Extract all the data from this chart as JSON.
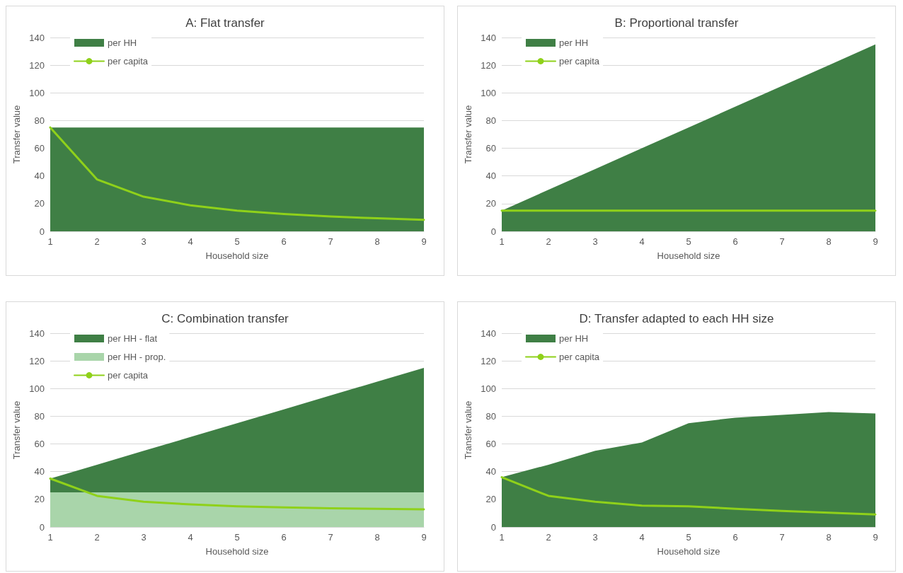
{
  "chart_data": [
    {
      "type": "area",
      "title": "A: Flat transfer",
      "xlabel": "Household size",
      "ylabel": "Transfer value",
      "categories": [
        "1",
        "2",
        "3",
        "4",
        "5",
        "6",
        "7",
        "8",
        "9"
      ],
      "series": [
        {
          "name": "per HH",
          "color": "#3f7f45",
          "values": [
            75,
            75,
            75,
            75,
            75,
            75,
            75,
            75,
            75
          ]
        },
        {
          "name": "per capita",
          "type": "line",
          "color": "#8fd11a",
          "values": [
            75,
            37.5,
            25,
            18.8,
            15,
            12.5,
            10.7,
            9.4,
            8.3
          ]
        }
      ],
      "ylim": [
        0,
        140
      ],
      "yticks": [
        0,
        20,
        40,
        60,
        80,
        100,
        120,
        140
      ],
      "grid": "y",
      "legend": "top left",
      "marker": "none"
    },
    {
      "type": "area",
      "title": "B: Proportional transfer",
      "xlabel": "Household size",
      "ylabel": "Transfer value",
      "categories": [
        "1",
        "2",
        "3",
        "4",
        "5",
        "6",
        "7",
        "8",
        "9"
      ],
      "series": [
        {
          "name": "per HH",
          "color": "#3f7f45",
          "values": [
            15,
            30,
            45,
            60,
            75,
            90,
            105,
            120,
            135
          ]
        },
        {
          "name": "per capita",
          "type": "line",
          "color": "#8fd11a",
          "values": [
            15,
            15,
            15,
            15,
            15,
            15,
            15,
            15,
            15
          ]
        }
      ],
      "ylim": [
        0,
        140
      ],
      "yticks": [
        0,
        20,
        40,
        60,
        80,
        100,
        120,
        140
      ],
      "grid": "y",
      "legend": "top left",
      "marker": "none"
    },
    {
      "type": "area",
      "title": "C: Combination transfer",
      "xlabel": "Household size",
      "ylabel": "Transfer value",
      "categories": [
        "1",
        "2",
        "3",
        "4",
        "5",
        "6",
        "7",
        "8",
        "9"
      ],
      "stacked": true,
      "series": [
        {
          "name": "per HH - prop.",
          "color": "#a9d5aa",
          "values": [
            25,
            25,
            25,
            25,
            25,
            25,
            25,
            25,
            25
          ]
        },
        {
          "name": "per HH - flat",
          "color": "#3f7f45",
          "values": [
            10,
            20,
            30,
            40,
            50,
            60,
            70,
            80,
            90
          ]
        },
        {
          "name": "per capita",
          "type": "line",
          "color": "#8fd11a",
          "values": [
            35,
            22.5,
            18.3,
            16.3,
            15,
            14.2,
            13.6,
            13.1,
            12.8
          ]
        }
      ],
      "ylim": [
        0,
        140
      ],
      "yticks": [
        0,
        20,
        40,
        60,
        80,
        100,
        120,
        140
      ],
      "grid": "y",
      "legend": "top left",
      "marker": "none"
    },
    {
      "type": "area",
      "title": "D: Transfer adapted to each HH size",
      "xlabel": "Household size",
      "ylabel": "Transfer value",
      "categories": [
        "1",
        "2",
        "3",
        "4",
        "5",
        "6",
        "7",
        "8",
        "9"
      ],
      "series": [
        {
          "name": "per HH",
          "color": "#3f7f45",
          "values": [
            36,
            45,
            55,
            61,
            75,
            79,
            81,
            83,
            82
          ]
        },
        {
          "name": "per capita",
          "type": "line",
          "color": "#8fd11a",
          "values": [
            36,
            22.5,
            18.3,
            15.5,
            15,
            13.2,
            11.6,
            10.4,
            9.1
          ]
        }
      ],
      "ylim": [
        0,
        140
      ],
      "yticks": [
        0,
        20,
        40,
        60,
        80,
        100,
        120,
        140
      ],
      "grid": "y",
      "legend": "top left",
      "marker": "none"
    }
  ]
}
